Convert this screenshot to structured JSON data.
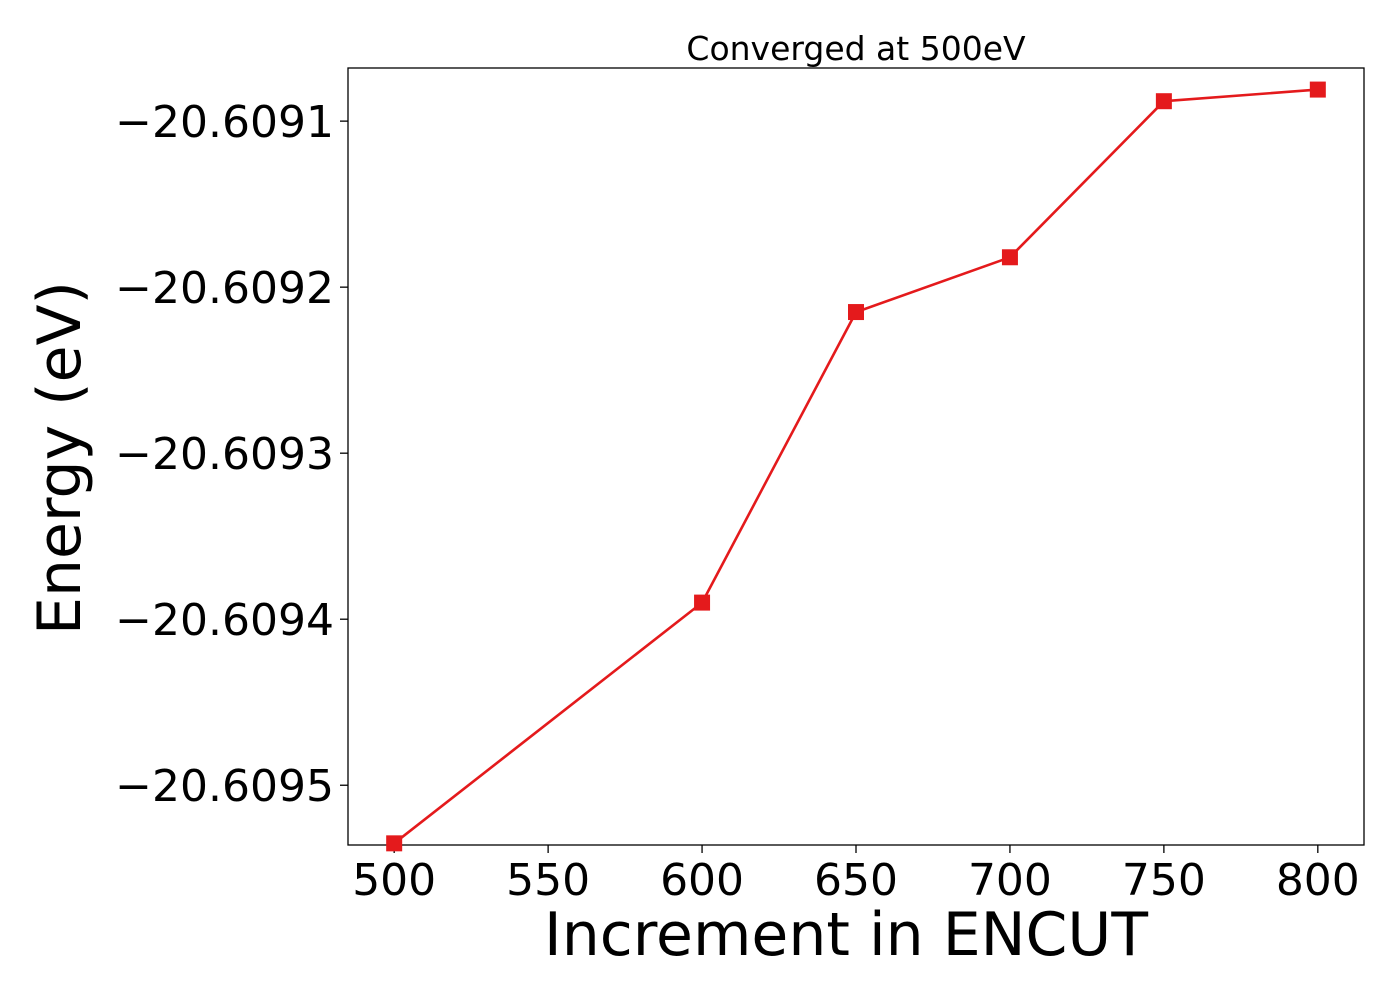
{
  "chart_data": {
    "type": "line",
    "title": "Converged at 500eV",
    "xlabel": "Increment in ENCUT",
    "ylabel": "Energy (eV)",
    "xlim": [
      485,
      815
    ],
    "ylim": [
      -20.609536,
      -20.609068
    ],
    "x_ticks": [
      500,
      550,
      600,
      650,
      700,
      750,
      800
    ],
    "x_tick_labels": [
      "500",
      "550",
      "600",
      "650",
      "700",
      "750",
      "800"
    ],
    "y_ticks": [
      -20.6095,
      -20.6094,
      -20.6093,
      -20.6092,
      -20.6091
    ],
    "y_tick_labels": [
      "−20.6095",
      "−20.6094",
      "−20.6093",
      "−20.6092",
      "−20.6091"
    ],
    "grid": false,
    "series": [
      {
        "x": [
          500,
          600,
          650,
          700,
          750,
          800
        ],
        "y": [
          -20.609535,
          -20.60939,
          -20.609215,
          -20.609182,
          -20.609088,
          -20.609081
        ],
        "color": "#e41a1c",
        "marker": "square"
      }
    ]
  }
}
